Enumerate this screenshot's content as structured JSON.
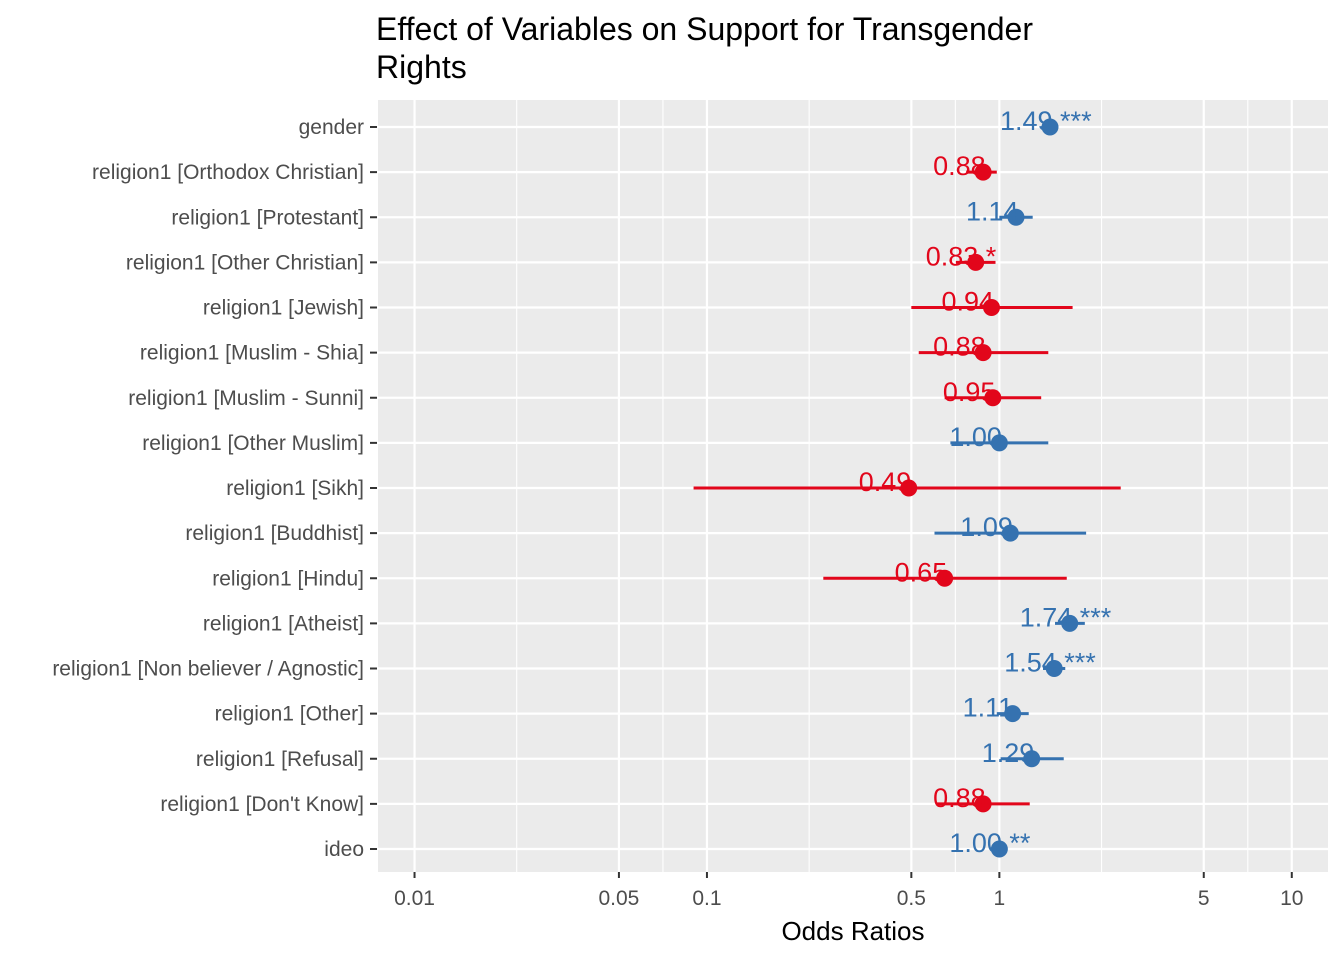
{
  "chart_data": {
    "type": "scatter",
    "subtype": "forest plot (odds ratios with confidence intervals)",
    "title": "Effect of Variables on Support for Transgender Rights",
    "title_lines": [
      "Effect of Variables on Support for Transgender",
      "Rights"
    ],
    "xlabel": "Odds Ratios",
    "ylabel": "",
    "x_scale": "log10",
    "xlim": [
      0.0075,
      13.3
    ],
    "x_ticks": [
      0.01,
      0.05,
      0.1,
      0.5,
      1,
      5,
      10
    ],
    "x_tick_labels": [
      "0.01",
      "0.05",
      "0.1",
      "0.5",
      "1",
      "5",
      "10"
    ],
    "grid": true,
    "legend": "none",
    "colors": {
      "positive": "#3572b0",
      "negative": "#e2061b",
      "panel": "#ebebeb",
      "grid": "#ffffff"
    },
    "terms": [
      {
        "label": "gender",
        "estimate": 1.49,
        "ci_low": 1.42,
        "ci_high": 1.56,
        "value_label": "1.49 ***"
      },
      {
        "label": "religion1 [Orthodox Christian]",
        "estimate": 0.88,
        "ci_low": 0.77,
        "ci_high": 0.98,
        "value_label": "0.88"
      },
      {
        "label": "religion1 [Protestant]",
        "estimate": 1.14,
        "ci_low": 1.0,
        "ci_high": 1.3,
        "value_label": "1.14"
      },
      {
        "label": "religion1 [Other Christian]",
        "estimate": 0.83,
        "ci_low": 0.71,
        "ci_high": 0.97,
        "value_label": "0.83 *"
      },
      {
        "label": "religion1 [Jewish]",
        "estimate": 0.94,
        "ci_low": 0.5,
        "ci_high": 1.78,
        "value_label": "0.94"
      },
      {
        "label": "religion1 [Muslim - Shia]",
        "estimate": 0.88,
        "ci_low": 0.53,
        "ci_high": 1.47,
        "value_label": "0.88"
      },
      {
        "label": "religion1 [Muslim - Sunni]",
        "estimate": 0.95,
        "ci_low": 0.65,
        "ci_high": 1.39,
        "value_label": "0.95"
      },
      {
        "label": "religion1 [Other Muslim]",
        "estimate": 1.0,
        "ci_low": 0.68,
        "ci_high": 1.47,
        "value_label": "1.00"
      },
      {
        "label": "religion1 [Sikh]",
        "estimate": 0.49,
        "ci_low": 0.09,
        "ci_high": 2.6,
        "value_label": "0.49"
      },
      {
        "label": "religion1 [Buddhist]",
        "estimate": 1.09,
        "ci_low": 0.6,
        "ci_high": 1.98,
        "value_label": "1.09"
      },
      {
        "label": "religion1 [Hindu]",
        "estimate": 0.65,
        "ci_low": 0.25,
        "ci_high": 1.7,
        "value_label": "0.65"
      },
      {
        "label": "religion1 [Atheist]",
        "estimate": 1.74,
        "ci_low": 1.55,
        "ci_high": 1.96,
        "value_label": "1.74 ***"
      },
      {
        "label": "religion1 [Non believer / Agnostic]",
        "estimate": 1.54,
        "ci_low": 1.41,
        "ci_high": 1.68,
        "value_label": "1.54 ***"
      },
      {
        "label": "religion1 [Other]",
        "estimate": 1.11,
        "ci_low": 0.98,
        "ci_high": 1.26,
        "value_label": "1.11"
      },
      {
        "label": "religion1 [Refusal]",
        "estimate": 1.29,
        "ci_low": 1.01,
        "ci_high": 1.66,
        "value_label": "1.29"
      },
      {
        "label": "religion1 [Don't Know]",
        "estimate": 0.88,
        "ci_low": 0.61,
        "ci_high": 1.27,
        "value_label": "0.88"
      },
      {
        "label": "ideo",
        "estimate": 1.0,
        "ci_low": 1.0,
        "ci_high": 1.0,
        "value_label": "1.00 **"
      }
    ]
  }
}
